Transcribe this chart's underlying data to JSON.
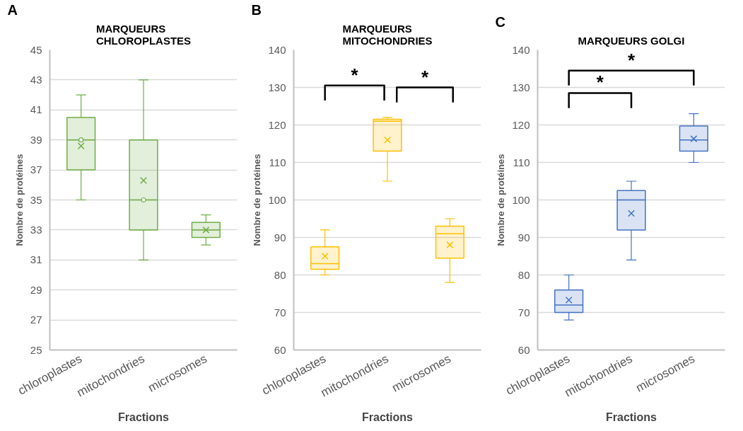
{
  "chart_data": [
    {
      "type": "box",
      "title": "MARQUEURS\nCHLOROPLASTES",
      "xlabel": "Fractions",
      "ylabel": "Nombre de protéines",
      "categories": [
        "chloroplastes",
        "mitochondries",
        "microsomes"
      ],
      "series": [
        {
          "color": "#70ad47",
          "boxes": [
            {
              "low": 35,
              "q1": 37,
              "median": 39,
              "q3": 40.5,
              "high": 42,
              "mean": 38.6,
              "outliers": [
                39
              ]
            },
            {
              "low": 31,
              "q1": 33,
              "median": 35,
              "q3": 39,
              "high": 43,
              "mean": 36.3,
              "outliers": [
                35
              ]
            },
            {
              "low": 32,
              "q1": 32.5,
              "median": 33,
              "q3": 33.5,
              "high": 34,
              "mean": 33
            }
          ]
        }
      ],
      "ylim": [
        25,
        45
      ],
      "yticks": [
        25,
        27,
        29,
        31,
        33,
        35,
        37,
        39,
        41,
        43,
        45
      ],
      "grid": "y",
      "annotations": [
        "A"
      ]
    },
    {
      "type": "box",
      "title": "MARQUEURS\nMITOCHONDRIES",
      "xlabel": "Fractions",
      "ylabel": "Nombre de protéines",
      "categories": [
        "chloroplastes",
        "mitochondries",
        "microsomes"
      ],
      "series": [
        {
          "color": "#ffc000",
          "boxes": [
            {
              "low": 80,
              "q1": 81.5,
              "median": 83,
              "q3": 87.5,
              "high": 92,
              "mean": 85
            },
            {
              "low": 105,
              "q1": 113,
              "median": 121,
              "q3": 121.5,
              "high": 122,
              "mean": 116
            },
            {
              "low": 78,
              "q1": 84.5,
              "median": 91,
              "q3": 93,
              "high": 95,
              "mean": 88
            }
          ]
        }
      ],
      "ylim": [
        60,
        140
      ],
      "yticks": [
        60,
        70,
        80,
        90,
        100,
        110,
        120,
        130,
        140
      ],
      "grid": "y",
      "annotations": [
        "B",
        "*",
        "*"
      ]
    },
    {
      "type": "box",
      "title": "MARQUEURS GOLGI",
      "xlabel": "Fractions",
      "ylabel": "Nombre de protéines",
      "categories": [
        "chloroplastes",
        "mitochondries",
        "microsomes"
      ],
      "series": [
        {
          "color": "#4472c4",
          "boxes": [
            {
              "low": 68,
              "q1": 70,
              "median": 72,
              "q3": 76,
              "high": 80,
              "mean": 73.3
            },
            {
              "low": 84,
              "q1": 92,
              "median": 100,
              "q3": 102.5,
              "high": 105,
              "mean": 96.4
            },
            {
              "low": 110,
              "q1": 113,
              "median": 116,
              "q3": 119.7,
              "high": 123,
              "mean": 116.3
            }
          ]
        }
      ],
      "ylim": [
        60,
        140
      ],
      "yticks": [
        60,
        70,
        80,
        90,
        100,
        110,
        120,
        130,
        140
      ],
      "grid": "y",
      "annotations": [
        "C",
        "*",
        "*"
      ]
    }
  ]
}
